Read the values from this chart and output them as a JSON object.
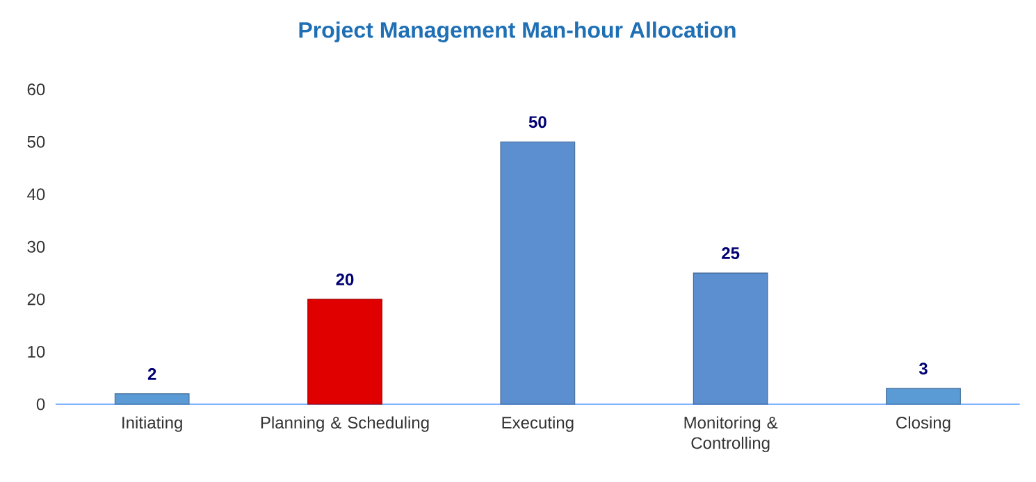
{
  "chart_data": {
    "type": "bar",
    "title": "Project Management Man-hour Allocation",
    "categories": [
      "Initiating",
      "Planning & Scheduling",
      "Executing",
      "Monitoring & Controlling",
      "Closing"
    ],
    "values": [
      2,
      20,
      50,
      25,
      3
    ],
    "colors": [
      "#5b9bd5",
      "#e00000",
      "#5b8fd0",
      "#5b8fd0",
      "#5b9bd5"
    ],
    "ylim": [
      0,
      60
    ],
    "yticks": [
      0,
      10,
      20,
      30,
      40,
      50,
      60
    ],
    "grid": false,
    "data_labels": true
  }
}
